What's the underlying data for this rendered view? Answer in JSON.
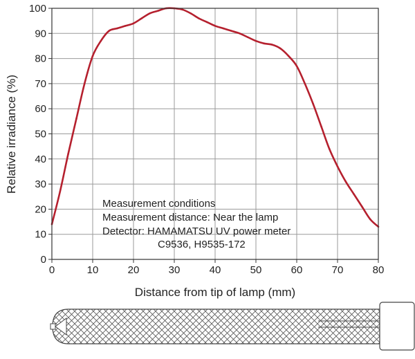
{
  "chart_data": {
    "type": "line",
    "title": "",
    "xlabel": "Distance from tip of lamp (mm)",
    "ylabel": "Relative irradiance (%)",
    "xlim": [
      0,
      80
    ],
    "ylim": [
      0,
      100
    ],
    "x_ticks": [
      "0",
      "10",
      "20",
      "30",
      "40",
      "50",
      "60",
      "70",
      "80"
    ],
    "y_ticks": [
      "0",
      "10",
      "20",
      "30",
      "40",
      "50",
      "60",
      "70",
      "80",
      "90",
      "100"
    ],
    "grid": true,
    "series": [
      {
        "color": "#b5202e",
        "x": [
          0,
          2,
          4,
          6,
          8,
          10,
          12,
          14,
          16,
          18,
          20,
          22,
          24,
          26,
          28,
          30,
          32,
          34,
          36,
          38,
          40,
          42,
          44,
          46,
          48,
          50,
          52,
          54,
          56,
          58,
          60,
          62,
          64,
          66,
          68,
          70,
          72,
          74,
          76,
          78,
          80
        ],
        "y": [
          14,
          27,
          42,
          56,
          70,
          81,
          87,
          91,
          92,
          93,
          94,
          96,
          98,
          99,
          100,
          100,
          99.5,
          98,
          96,
          94.5,
          93,
          92,
          91,
          90,
          88.5,
          87,
          86,
          85.5,
          84,
          81,
          77,
          70,
          62,
          53,
          44,
          37,
          31,
          26,
          21,
          16,
          13
        ]
      }
    ],
    "annotations": [
      "Measurement conditions",
      "Measurement distance: Near the lamp",
      "Detector: HAMAMATSU UV power meter",
      "C9536, H9535-172"
    ]
  }
}
